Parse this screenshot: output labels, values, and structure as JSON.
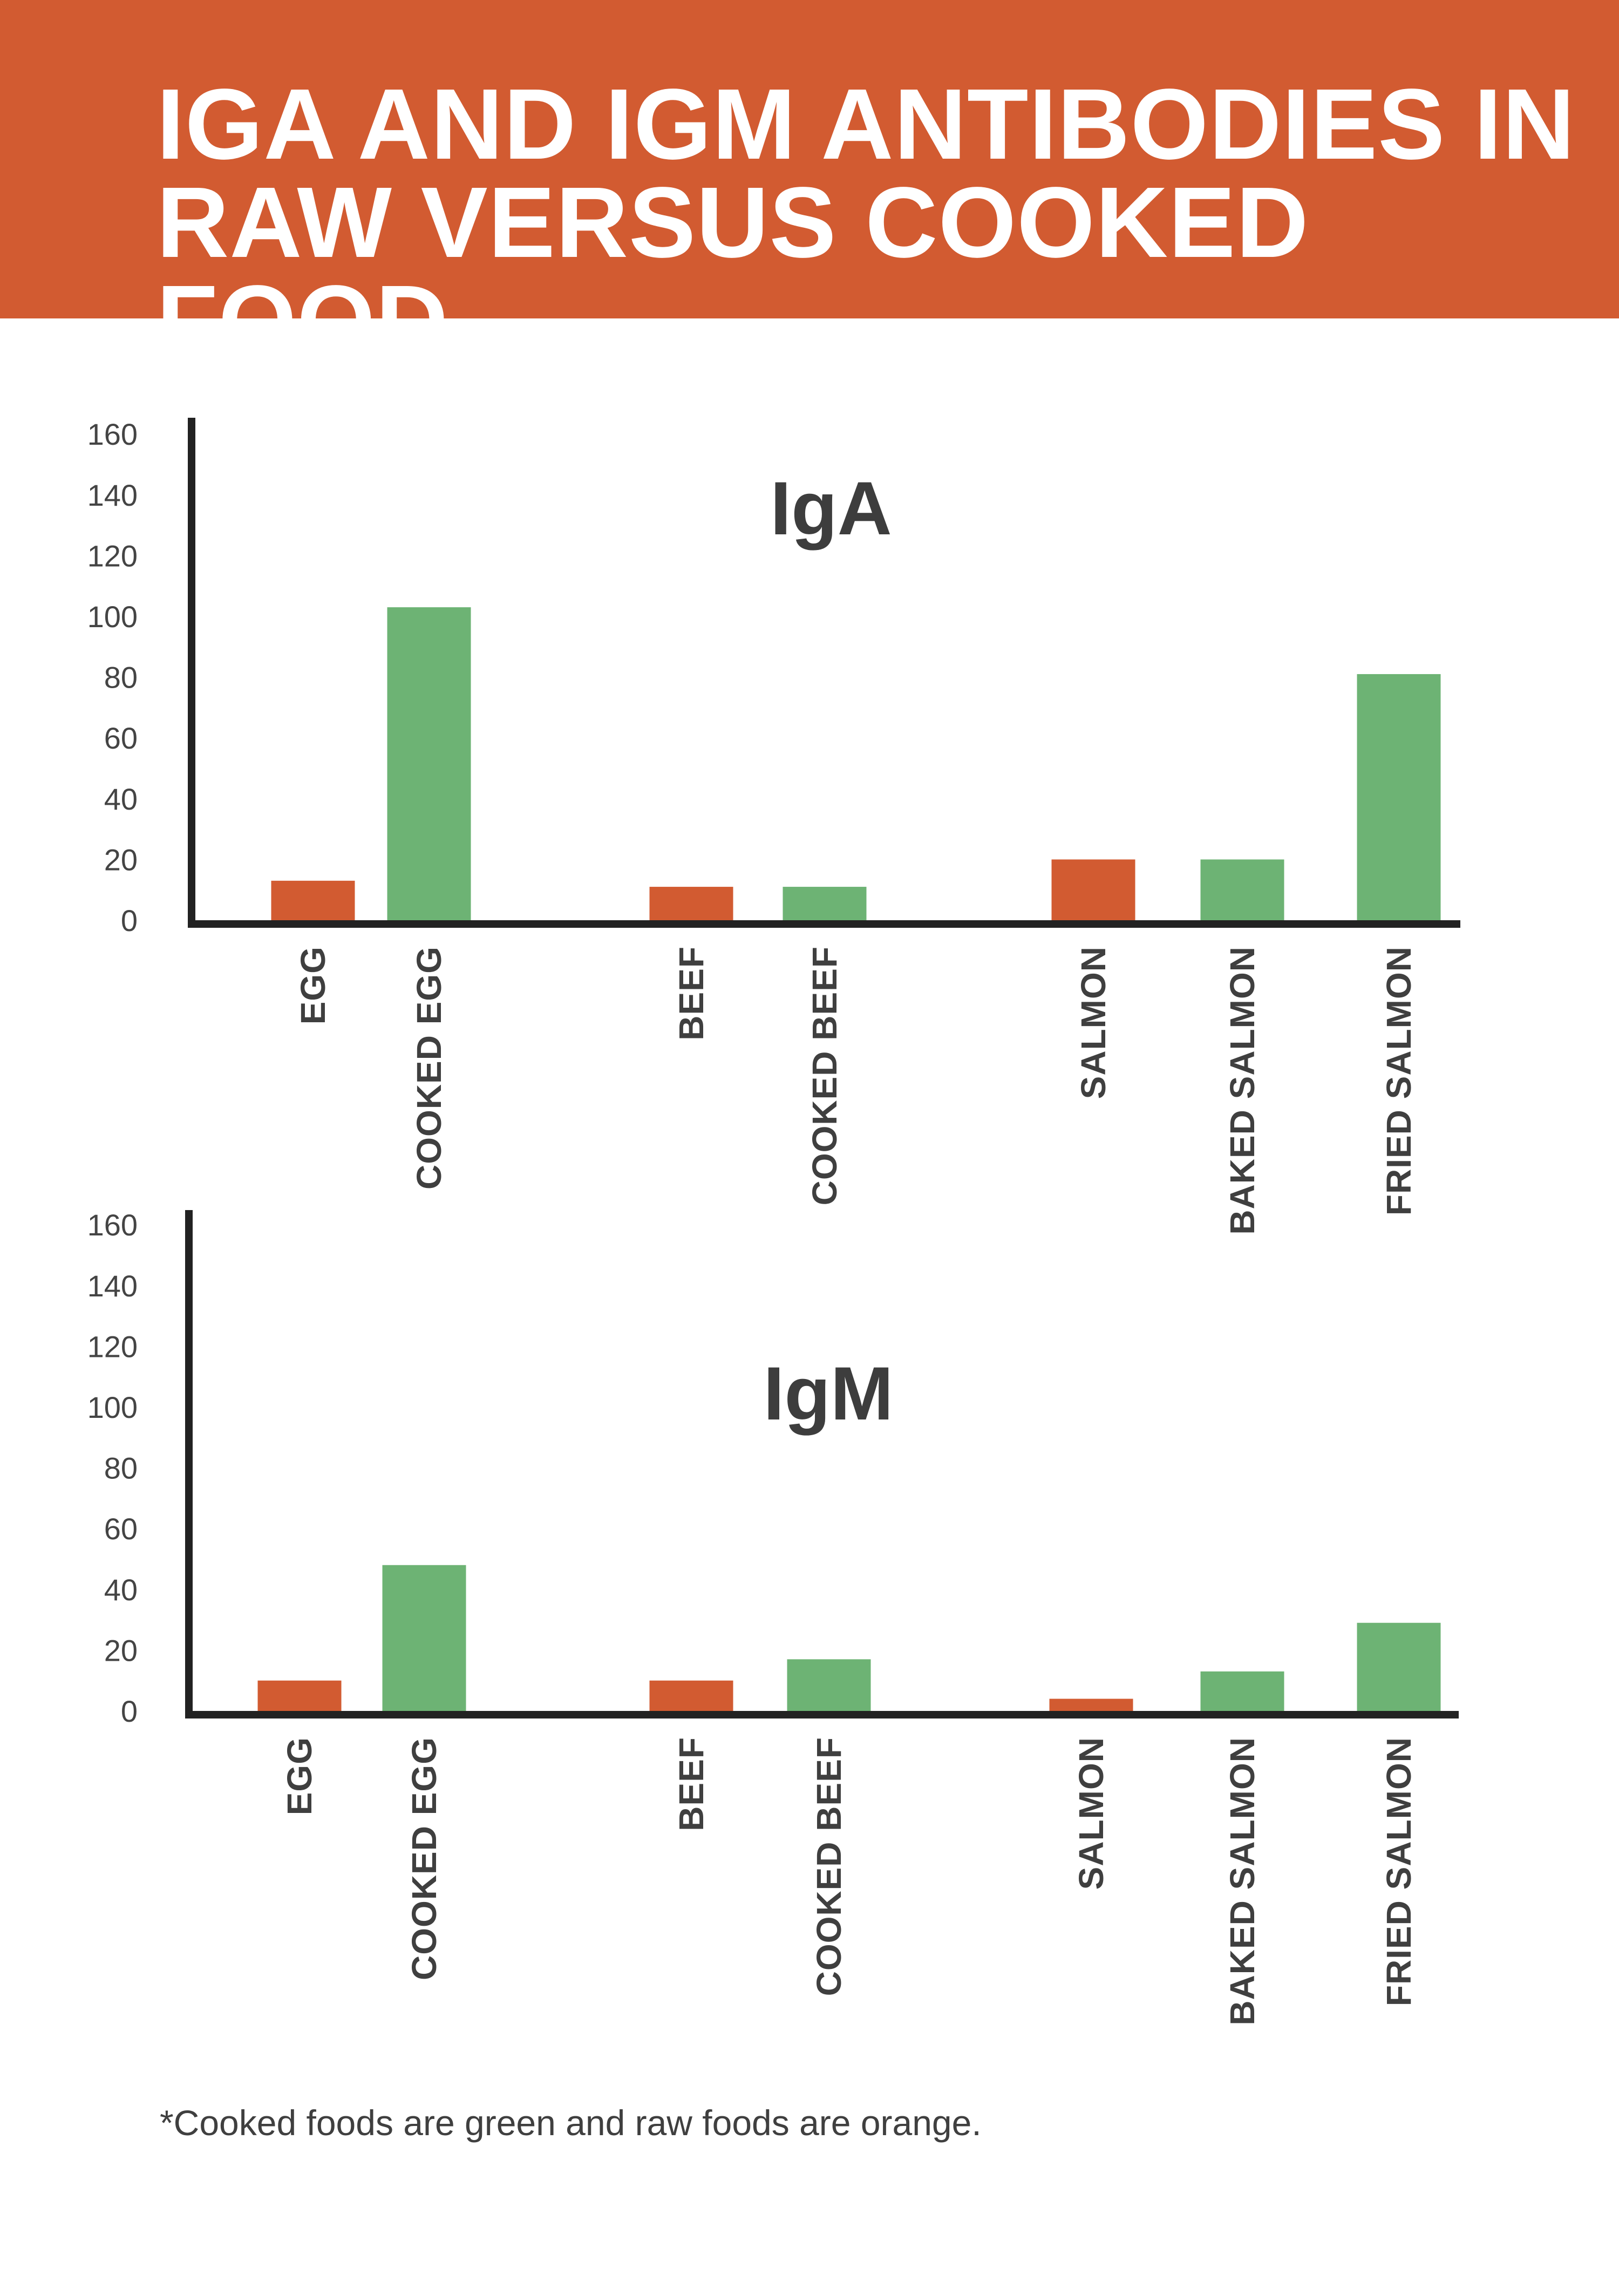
{
  "title": "IGA AND IGM ANTIBODIES IN RAW VERSUS COOKED FOOD",
  "footnote": "*Cooked foods are green and raw foods are orange.",
  "colors": {
    "banner": "#d25b31",
    "raw": "#d25b31",
    "cooked": "#6db374",
    "axis": "#222222"
  },
  "chart_data": [
    {
      "type": "bar",
      "title": "IgA",
      "categories": [
        "EGG",
        "COOKED EGG",
        "BEEF",
        "COOKED BEEF",
        "SALMON",
        "BAKED SALMON",
        "FRIED SALMON"
      ],
      "values": [
        13,
        103,
        11,
        11,
        20,
        20,
        81
      ],
      "kinds": [
        "raw",
        "cooked",
        "raw",
        "cooked",
        "raw",
        "cooked",
        "cooked"
      ],
      "yticks": [
        0,
        20,
        40,
        60,
        80,
        100,
        120,
        140,
        160
      ],
      "ylim": [
        0,
        160
      ],
      "grid": false,
      "xlabel": "",
      "ylabel": ""
    },
    {
      "type": "bar",
      "title": "IgM",
      "categories": [
        "EGG",
        "COOKED EGG",
        "BEEF",
        "COOKED BEEF",
        "SALMON",
        "BAKED SALMON",
        "FRIED SALMON"
      ],
      "values": [
        10,
        48,
        10,
        17,
        4,
        13,
        29
      ],
      "kinds": [
        "raw",
        "cooked",
        "raw",
        "cooked",
        "raw",
        "cooked",
        "cooked"
      ],
      "yticks": [
        0,
        20,
        40,
        60,
        80,
        100,
        120,
        140,
        160
      ],
      "ylim": [
        0,
        160
      ],
      "grid": false,
      "xlabel": "",
      "ylabel": ""
    }
  ]
}
